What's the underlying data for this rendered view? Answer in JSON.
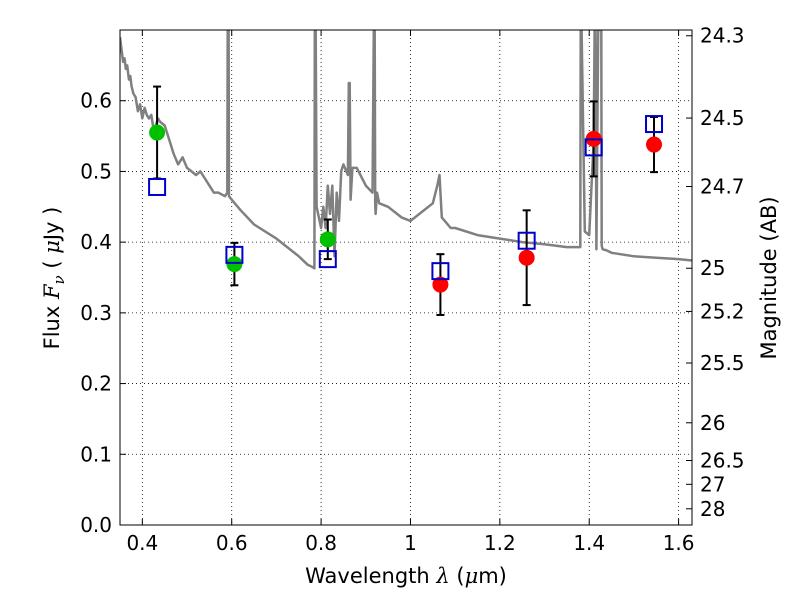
{
  "chart_data": {
    "type": "scatter",
    "title": "",
    "xlabel": {
      "prefix": "Wavelength  ",
      "symbol": "λ",
      "unit_open": " (",
      "unit_mu": "μ",
      "unit_rest": "m)"
    },
    "ylabel": {
      "prefix": "Flux  ",
      "symbol": "F",
      "sub": "ν",
      "unit_open": "  ( ",
      "unit_mu": "μ",
      "unit_rest": "Jy )"
    },
    "ylabel_right": "Magnitude (AB)",
    "xlim": [
      0.35,
      1.63
    ],
    "ylim": [
      0.0,
      0.7
    ],
    "grid": true,
    "x_ticks": [
      0.4,
      0.6,
      0.8,
      1.0,
      1.2,
      1.4,
      1.6
    ],
    "x_tick_labels": [
      "0.4",
      "0.6",
      "0.8",
      "1",
      "1.2",
      "1.4",
      "1.6"
    ],
    "y_ticks": [
      0.0,
      0.1,
      0.2,
      0.3,
      0.4,
      0.5,
      0.6
    ],
    "y_tick_labels": [
      "0.0",
      "0.1",
      "0.2",
      "0.3",
      "0.4",
      "0.5",
      "0.6"
    ],
    "right_ticks_mag": [
      24.3,
      24.5,
      24.7,
      25,
      25.2,
      25.5,
      26,
      26.5,
      27,
      28
    ],
    "right_tick_labels": [
      "24.3",
      "24.5",
      "24.7",
      "25",
      "25.2",
      "25.5",
      "26",
      "26.5",
      "27",
      "28"
    ],
    "colors": {
      "model_line": "#808080",
      "green_points": "#00c000",
      "red_points": "#ff0000",
      "model_squares": "#0000cc",
      "error_bars": "#000000",
      "grid": "#000000"
    },
    "model_spectrum": {
      "x": [
        0.35,
        0.353,
        0.357,
        0.36,
        0.363,
        0.366,
        0.37,
        0.373,
        0.376,
        0.38,
        0.385,
        0.39,
        0.395,
        0.4,
        0.405,
        0.41,
        0.415,
        0.42,
        0.425,
        0.43,
        0.435,
        0.44,
        0.45,
        0.46,
        0.47,
        0.48,
        0.49,
        0.5,
        0.51,
        0.52,
        0.53,
        0.54,
        0.55,
        0.56,
        0.57,
        0.585,
        0.59,
        0.591,
        0.592,
        0.593,
        0.594,
        0.6,
        0.62,
        0.65,
        0.7,
        0.75,
        0.77,
        0.78,
        0.785,
        0.786,
        0.787,
        0.788,
        0.79,
        0.8,
        0.805,
        0.81,
        0.815,
        0.82,
        0.825,
        0.83,
        0.835,
        0.84,
        0.845,
        0.85,
        0.86,
        0.862,
        0.864,
        0.866,
        0.87,
        0.88,
        0.9,
        0.915,
        0.918,
        0.919,
        0.92,
        0.921,
        0.922,
        0.925,
        0.93,
        0.95,
        0.98,
        1.0,
        1.02,
        1.05,
        1.06,
        1.065,
        1.07,
        1.09,
        1.1,
        1.15,
        1.2,
        1.25,
        1.3,
        1.35,
        1.38,
        1.381,
        1.382,
        1.383,
        1.39,
        1.4,
        1.41,
        1.412,
        1.414,
        1.416,
        1.42,
        1.425,
        1.427,
        1.428,
        1.43,
        1.44,
        1.45,
        1.5,
        1.55,
        1.6,
        1.63
      ],
      "y": [
        0.69,
        0.675,
        0.655,
        0.66,
        0.645,
        0.65,
        0.63,
        0.635,
        0.62,
        0.61,
        0.605,
        0.585,
        0.595,
        0.575,
        0.59,
        0.58,
        0.575,
        0.58,
        0.56,
        0.565,
        0.575,
        0.57,
        0.565,
        0.545,
        0.525,
        0.51,
        0.52,
        0.505,
        0.5,
        0.495,
        0.5,
        0.49,
        0.48,
        0.47,
        0.47,
        0.465,
        0.47,
        0.7,
        0.7,
        0.7,
        0.465,
        0.46,
        0.445,
        0.425,
        0.405,
        0.38,
        0.368,
        0.365,
        0.363,
        0.7,
        0.7,
        0.7,
        0.45,
        0.42,
        0.45,
        0.42,
        0.48,
        0.44,
        0.48,
        0.38,
        0.47,
        0.43,
        0.5,
        0.51,
        0.495,
        0.625,
        0.625,
        0.46,
        0.505,
        0.505,
        0.48,
        0.47,
        0.7,
        0.7,
        0.7,
        0.455,
        0.44,
        0.47,
        0.455,
        0.45,
        0.435,
        0.43,
        0.44,
        0.455,
        0.48,
        0.495,
        0.435,
        0.42,
        0.42,
        0.41,
        0.405,
        0.4,
        0.397,
        0.393,
        0.393,
        0.7,
        0.7,
        0.7,
        0.415,
        0.41,
        0.545,
        0.7,
        0.7,
        0.39,
        0.7,
        0.7,
        0.7,
        0.395,
        0.39,
        0.388,
        0.385,
        0.38,
        0.378,
        0.376,
        0.374
      ]
    },
    "series": [
      {
        "marker": "circle",
        "color": "green",
        "x": [
          0.433,
          0.606,
          0.815
        ],
        "y": [
          0.555,
          0.369,
          0.404
        ],
        "yerr": [
          0.065,
          0.03,
          0.028
        ]
      },
      {
        "marker": "circle",
        "color": "red",
        "x": [
          1.067,
          1.26,
          1.41,
          1.545
        ],
        "y": [
          0.34,
          0.378,
          0.546,
          0.538
        ],
        "yerr": [
          0.043,
          0.067,
          0.053,
          0.039
        ]
      },
      {
        "marker": "open-square",
        "color": "blue",
        "x": [
          0.433,
          0.606,
          0.815,
          1.067,
          1.26,
          1.41,
          1.545
        ],
        "y": [
          0.478,
          0.382,
          0.376,
          0.359,
          0.402,
          0.534,
          0.567
        ]
      }
    ]
  }
}
